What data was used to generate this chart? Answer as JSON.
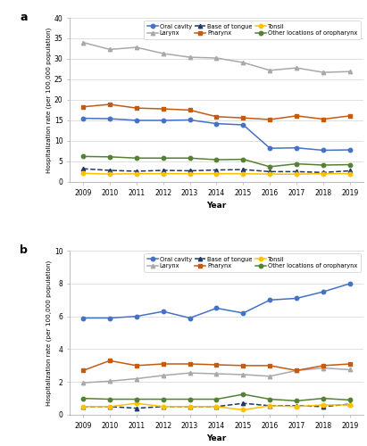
{
  "years": [
    2009,
    2010,
    2011,
    2012,
    2013,
    2014,
    2015,
    2016,
    2017,
    2018,
    2019
  ],
  "panel_a": {
    "title": "a",
    "ylim": [
      0,
      40
    ],
    "yticks": [
      0,
      5,
      10,
      15,
      20,
      25,
      30,
      35,
      40
    ],
    "series": {
      "Oral cavity": [
        15.5,
        15.4,
        15.0,
        15.0,
        15.1,
        14.2,
        13.9,
        8.2,
        8.3,
        7.7,
        7.8
      ],
      "Larynx": [
        34.0,
        32.3,
        32.8,
        31.3,
        30.4,
        30.2,
        29.1,
        27.2,
        27.8,
        26.7,
        26.9
      ],
      "Base of tongue": [
        3.2,
        2.8,
        2.6,
        2.8,
        2.7,
        2.9,
        3.0,
        2.5,
        2.5,
        2.3,
        2.7
      ],
      "Pharynx": [
        18.3,
        18.9,
        18.0,
        17.8,
        17.5,
        15.9,
        15.6,
        15.2,
        16.1,
        15.3,
        16.1
      ],
      "Tonsil": [
        2.1,
        1.9,
        2.0,
        2.0,
        2.0,
        2.0,
        2.0,
        1.9,
        1.9,
        2.0,
        2.0
      ],
      "Other locations of oropharynx": [
        6.2,
        6.1,
        5.8,
        5.8,
        5.8,
        5.4,
        5.5,
        3.7,
        4.4,
        4.1,
        4.2
      ]
    }
  },
  "panel_b": {
    "title": "b",
    "ylim": [
      0,
      10
    ],
    "yticks": [
      0,
      2,
      4,
      6,
      8,
      10
    ],
    "series": {
      "Oral cavity": [
        5.9,
        5.9,
        6.0,
        6.3,
        5.9,
        6.5,
        6.2,
        7.0,
        7.1,
        7.5,
        8.0
      ],
      "Larynx": [
        1.95,
        2.05,
        2.2,
        2.4,
        2.55,
        2.5,
        2.45,
        2.35,
        2.7,
        2.85,
        2.75
      ],
      "Base of tongue": [
        0.5,
        0.5,
        0.4,
        0.5,
        0.5,
        0.5,
        0.7,
        0.55,
        0.55,
        0.5,
        0.65
      ],
      "Pharynx": [
        2.7,
        3.3,
        3.0,
        3.1,
        3.1,
        3.05,
        3.0,
        3.0,
        2.7,
        3.0,
        3.1
      ],
      "Tonsil": [
        0.5,
        0.5,
        0.7,
        0.5,
        0.5,
        0.5,
        0.3,
        0.55,
        0.5,
        0.6,
        0.6
      ],
      "Other locations of oropharynx": [
        1.0,
        0.95,
        0.95,
        0.95,
        0.95,
        0.95,
        1.25,
        0.95,
        0.85,
        1.0,
        0.9
      ]
    }
  },
  "colors": {
    "Oral cavity": "#4472C4",
    "Larynx": "#A9A9A9",
    "Base of tongue": "#1F3864",
    "Pharynx": "#C55A11",
    "Tonsil": "#FFC000",
    "Other locations of oropharynx": "#548135"
  },
  "markers": {
    "Oral cavity": "o",
    "Larynx": "^",
    "Base of tongue": "^",
    "Pharynx": "s",
    "Tonsil": "o",
    "Other locations of oropharynx": "o"
  },
  "linestyles": {
    "Oral cavity": "-",
    "Larynx": "-",
    "Base of tongue": "--",
    "Pharynx": "-",
    "Tonsil": "-",
    "Other locations of oropharynx": "-"
  },
  "ylabel": "Hospitalization rate (per 100,000 population)",
  "xlabel": "Year",
  "background_color": "#ffffff",
  "grid_color": "#e0e0e0",
  "legend_order": [
    "Oral cavity",
    "Larynx",
    "Base of tongue",
    "Pharynx",
    "Tonsil",
    "Other locations of oropharynx"
  ]
}
